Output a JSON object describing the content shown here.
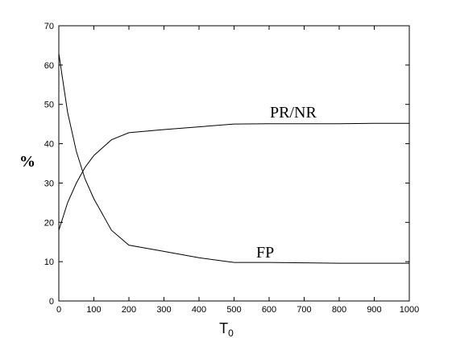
{
  "chart_data": {
    "type": "line",
    "title": "",
    "xlabel": "T",
    "xlabel_subscript": "0",
    "ylabel": "%",
    "xlim": [
      0,
      1000
    ],
    "ylim": [
      0,
      70
    ],
    "xticks": [
      0,
      100,
      200,
      300,
      400,
      500,
      600,
      700,
      800,
      900,
      1000
    ],
    "yticks": [
      0,
      10,
      20,
      30,
      40,
      50,
      60,
      70
    ],
    "grid": false,
    "legend": "none",
    "series": [
      {
        "name": "PR/NR",
        "x": [
          0,
          25,
          50,
          75,
          100,
          125,
          150,
          200,
          300,
          400,
          500,
          600,
          700,
          800,
          900,
          1000
        ],
        "y": [
          18,
          25,
          30,
          34,
          37,
          39,
          41,
          42.8,
          43.6,
          44.3,
          45.0,
          45.1,
          45.1,
          45.1,
          45.2,
          45.2
        ]
      },
      {
        "name": "FP",
        "x": [
          0,
          10,
          25,
          50,
          75,
          100,
          125,
          150,
          200,
          300,
          400,
          500,
          600,
          700,
          800,
          900,
          1000
        ],
        "y": [
          63,
          57,
          48,
          38,
          31,
          26,
          22,
          18,
          14.2,
          12.6,
          11.0,
          9.8,
          9.8,
          9.7,
          9.6,
          9.6,
          9.6
        ]
      }
    ]
  }
}
